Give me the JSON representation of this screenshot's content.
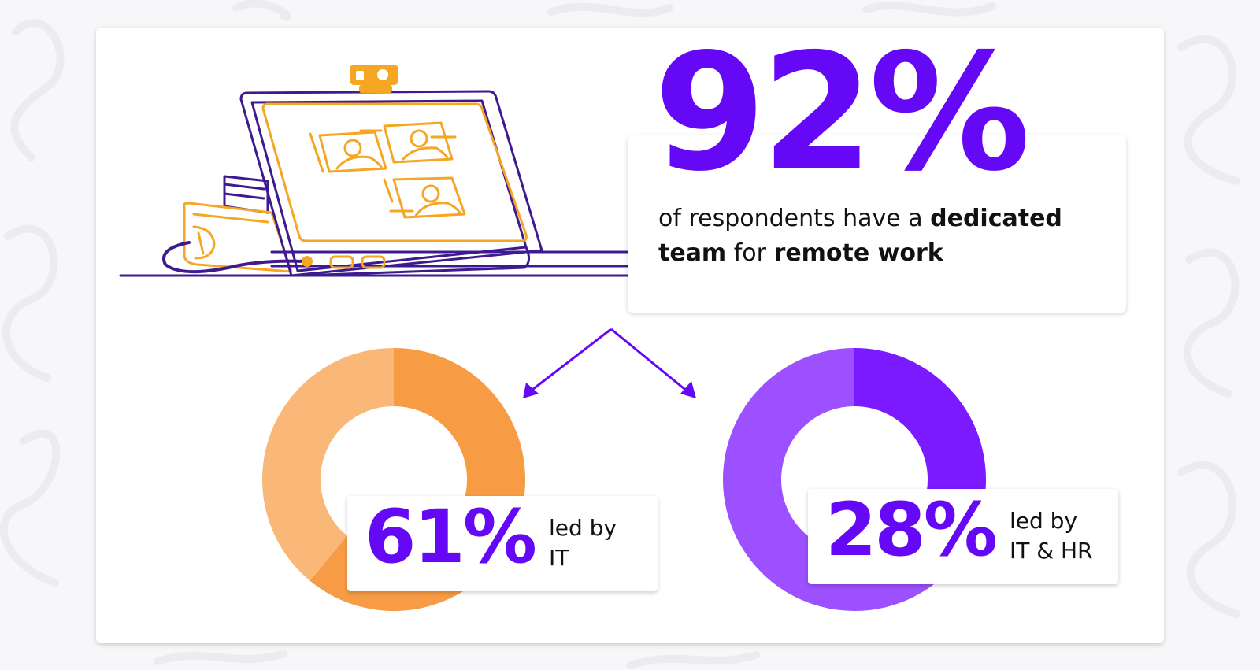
{
  "headline": {
    "value": "92%",
    "text_parts": [
      {
        "text": "of respondents have a ",
        "bold": false
      },
      {
        "text": "dedicated",
        "bold": true
      },
      {
        "text": " ",
        "bold": false
      },
      {
        "text": "team",
        "bold": true
      },
      {
        "text": " for ",
        "bold": false
      },
      {
        "text": "remote work",
        "bold": true
      }
    ]
  },
  "chart_data": [
    {
      "type": "pie",
      "variant": "donut",
      "value_percent": 61,
      "label_value": "61%",
      "label_line1": "led by",
      "label_line2": "IT",
      "colors": {
        "primary": "#f79c45",
        "secondary": "#f9b878"
      }
    },
    {
      "type": "pie",
      "variant": "donut",
      "value_percent": 28,
      "label_value": "28%",
      "label_line1": "led by",
      "label_line2": "IT & HR",
      "colors": {
        "primary": "#7b19ff",
        "secondary": "#9d50ff"
      }
    }
  ],
  "colors": {
    "accent": "#6508f6",
    "orange": "#f5a623",
    "line": "#3d1a8f"
  }
}
